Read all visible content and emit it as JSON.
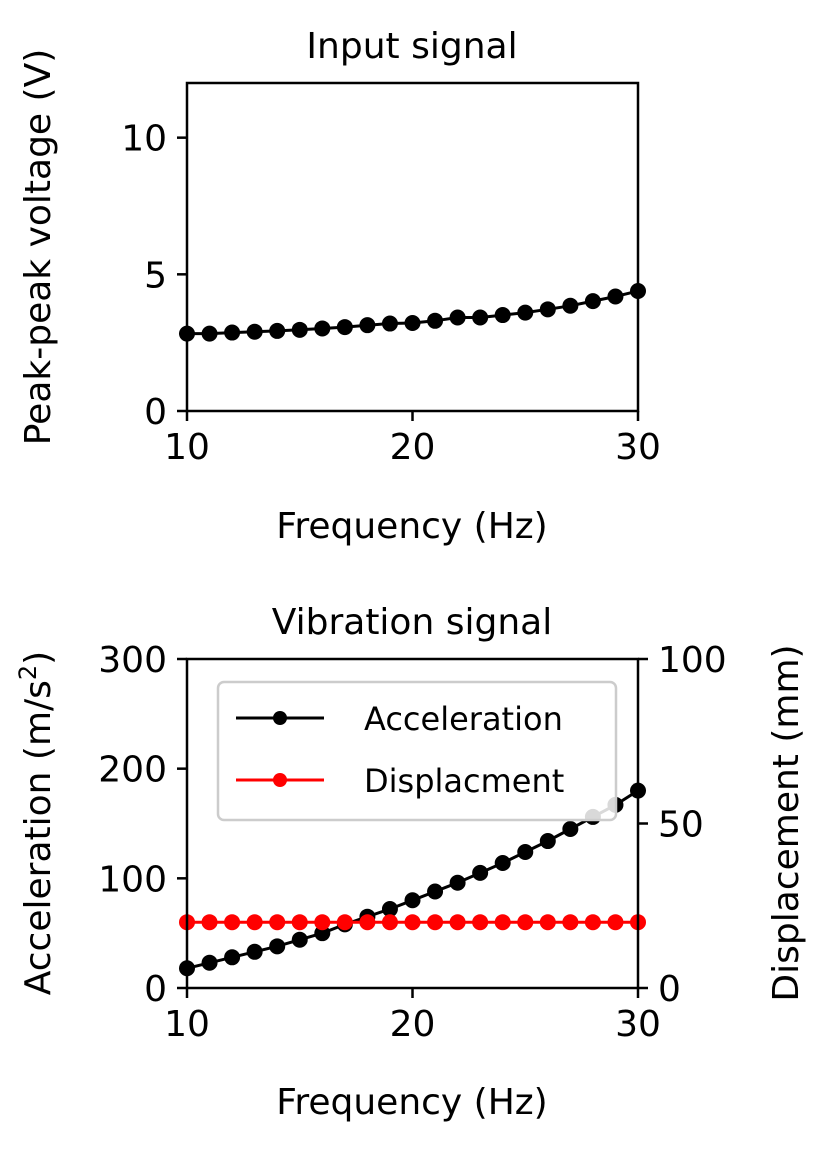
{
  "chart_data": [
    {
      "type": "line",
      "title": "Input signal",
      "xlabel": "Frequency (Hz)",
      "ylabel": "Peak-peak voltage (V)",
      "xlim": [
        10,
        30
      ],
      "ylim": [
        0,
        12
      ],
      "xticks": [
        "10",
        "20",
        "30"
      ],
      "yticks": [
        "0",
        "5",
        "10"
      ],
      "grid": false,
      "series": [
        {
          "color": "#000000",
          "marker": "circle",
          "x": [
            10,
            11,
            12,
            13,
            14,
            15,
            16,
            17,
            18,
            19,
            20,
            21,
            22,
            23,
            24,
            25,
            26,
            27,
            28,
            29,
            30
          ],
          "y": [
            2.83,
            2.83,
            2.87,
            2.9,
            2.93,
            2.97,
            3.02,
            3.07,
            3.14,
            3.2,
            3.22,
            3.3,
            3.42,
            3.42,
            3.51,
            3.6,
            3.72,
            3.85,
            4.02,
            4.19,
            4.39
          ]
        }
      ]
    },
    {
      "type": "line",
      "title": "Vibration signal",
      "xlabel": "Frequency (Hz)",
      "ylabel": "Acceleration (m/s",
      "ylabel_sup": "2",
      "ylabel_end": ")",
      "y2label": "Displacement (mm)",
      "xlim": [
        10,
        30
      ],
      "ylim": [
        0,
        300
      ],
      "y2lim": [
        0,
        100
      ],
      "xticks": [
        "10",
        "20",
        "30"
      ],
      "yticks": [
        "0",
        "100",
        "200",
        "300"
      ],
      "y2ticks": [
        "0",
        "50",
        "100"
      ],
      "grid": false,
      "legend_position": "top-left",
      "series": [
        {
          "name": "Acceleration",
          "axis": "left",
          "color": "#000000",
          "marker": "circle",
          "x": [
            10,
            11,
            12,
            13,
            14,
            15,
            16,
            17,
            18,
            19,
            20,
            21,
            22,
            23,
            24,
            25,
            26,
            27,
            28,
            29,
            30
          ],
          "y": [
            18,
            23,
            28,
            33,
            38,
            44,
            50,
            58,
            65,
            72,
            80,
            88,
            96,
            105,
            114,
            124,
            134,
            145,
            156,
            167,
            180
          ]
        },
        {
          "name": "Displacment",
          "axis": "right",
          "color": "#ff0000",
          "marker": "circle",
          "x": [
            10,
            11,
            12,
            13,
            14,
            15,
            16,
            17,
            18,
            19,
            20,
            21,
            22,
            23,
            24,
            25,
            26,
            27,
            28,
            29,
            30
          ],
          "y": [
            20,
            20,
            20,
            20,
            20,
            20,
            20,
            20,
            20,
            20,
            20,
            20,
            20,
            20,
            20,
            20,
            20,
            20,
            20,
            20,
            20
          ]
        }
      ]
    }
  ]
}
